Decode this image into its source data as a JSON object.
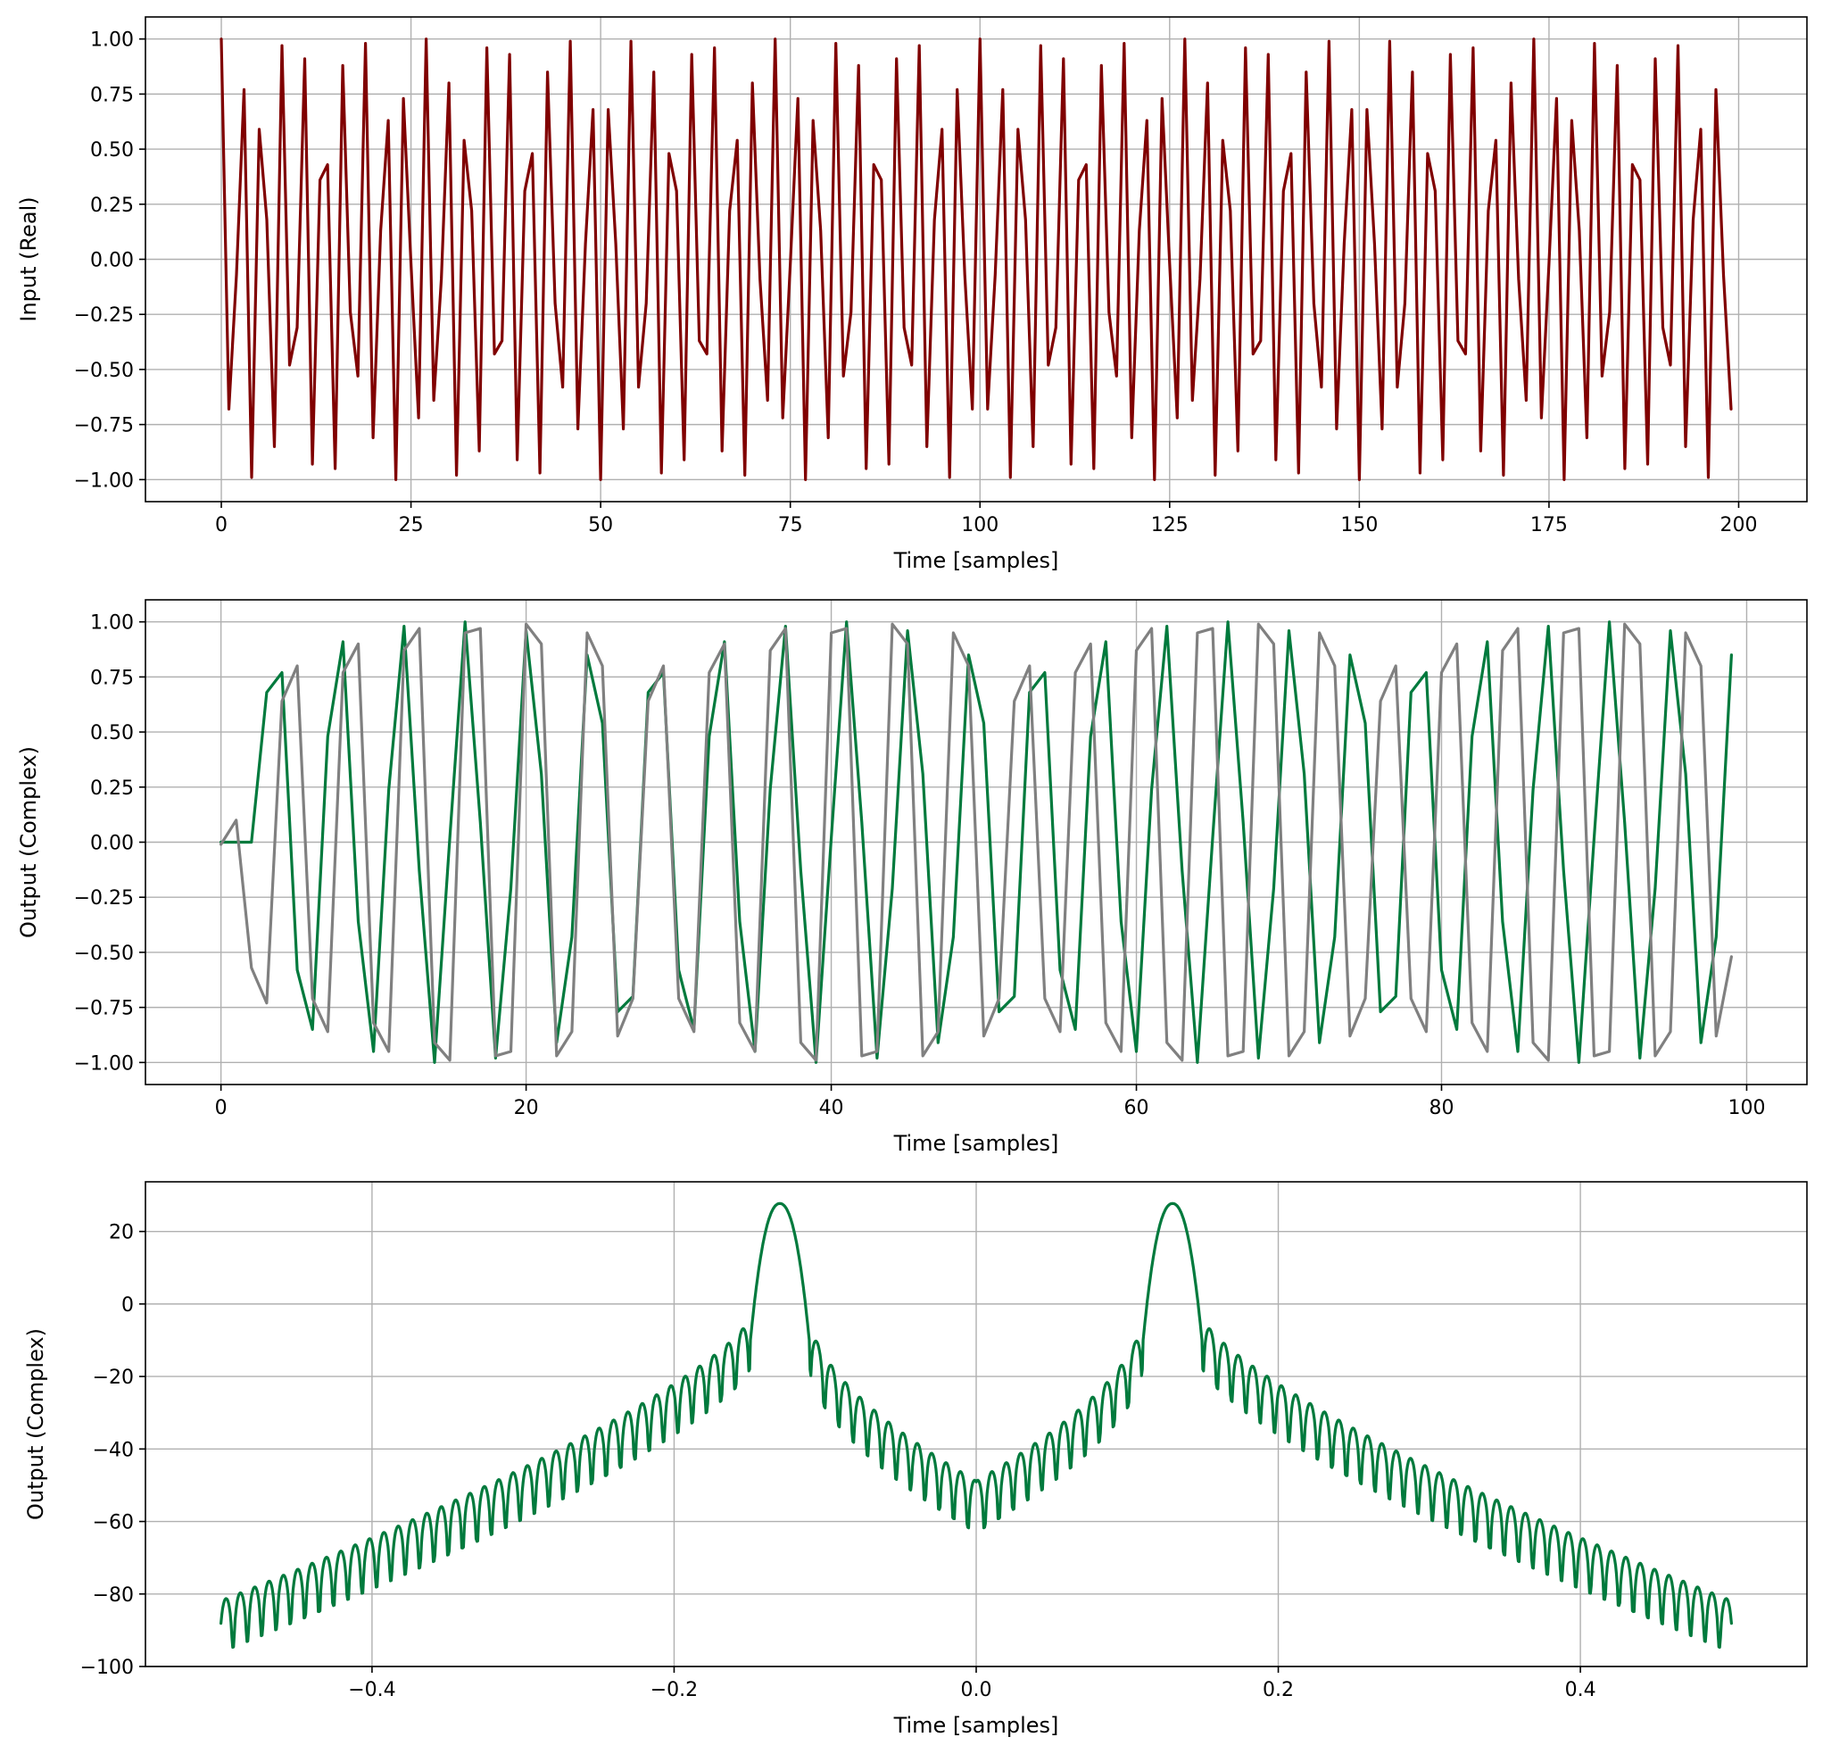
{
  "chart_data": [
    {
      "type": "line",
      "ylabel": "Input (Real)",
      "xlabel": "Time [samples]",
      "xlim": [
        -10,
        209
      ],
      "ylim": [
        -1.1,
        1.1
      ],
      "xticks": [
        0,
        25,
        50,
        75,
        100,
        125,
        150,
        175,
        200
      ],
      "xtick_labels": [
        "0",
        "25",
        "50",
        "75",
        "100",
        "125",
        "150",
        "175",
        "200"
      ],
      "yticks": [
        1.0,
        0.75,
        0.5,
        0.25,
        0.0,
        -0.25,
        -0.5,
        -0.75,
        -1.0
      ],
      "ytick_labels": [
        "1.00",
        "0.75",
        "0.50",
        "0.25",
        "0.00",
        "−0.25",
        "−0.50",
        "−0.75",
        "−1.00"
      ],
      "grid": true,
      "series": [
        {
          "color": "#800000",
          "x": [
            0,
            1,
            2,
            3,
            4,
            5,
            6,
            7,
            8,
            9,
            10,
            11,
            12,
            13,
            14,
            15,
            16,
            17,
            18,
            19,
            20,
            21,
            22,
            23,
            24,
            25,
            26,
            27,
            28,
            29,
            30,
            31,
            32,
            33,
            34,
            35,
            36,
            37,
            38,
            39,
            40,
            41,
            42,
            43,
            44,
            45,
            46,
            47,
            48,
            49,
            50,
            51,
            52,
            53,
            54,
            55,
            56,
            57,
            58,
            59,
            60,
            61,
            62,
            63,
            64,
            65,
            66,
            67,
            68,
            69,
            70,
            71,
            72,
            73,
            74,
            75,
            76,
            77,
            78,
            79,
            80,
            81,
            82,
            83,
            84,
            85,
            86,
            87,
            88,
            89,
            90,
            91,
            92,
            93,
            94,
            95,
            96,
            97,
            98,
            99,
            100,
            101,
            102,
            103,
            104,
            105,
            106,
            107,
            108,
            109,
            110,
            111,
            112,
            113,
            114,
            115,
            116,
            117,
            118,
            119,
            120,
            121,
            122,
            123,
            124,
            125,
            126,
            127,
            128,
            129,
            130,
            131,
            132,
            133,
            134,
            135,
            136,
            137,
            138,
            139,
            140,
            141,
            142,
            143,
            144,
            145,
            146,
            147,
            148,
            149,
            150,
            151,
            152,
            153,
            154,
            155,
            156,
            157,
            158,
            159,
            160,
            161,
            162,
            163,
            164,
            165,
            166,
            167,
            168,
            169,
            170,
            171,
            172,
            173,
            174,
            175,
            176,
            177,
            178,
            179,
            180,
            181,
            182,
            183,
            184,
            185,
            186,
            187,
            188,
            189,
            190,
            191,
            192,
            193,
            194,
            195,
            196,
            197,
            198,
            199
          ],
          "values": [
            1.0,
            -0.68,
            -0.07,
            0.77,
            -0.99,
            0.59,
            0.18,
            -0.85,
            0.97,
            -0.48,
            -0.31,
            0.91,
            -0.93,
            0.36,
            0.43,
            -0.95,
            0.88,
            -0.24,
            -0.53,
            0.98,
            -0.81,
            0.13,
            0.63,
            -1.0,
            0.73,
            -0.02,
            -0.72,
            1.0,
            -0.64,
            -0.09,
            0.8,
            -0.98,
            0.54,
            0.22,
            -0.87,
            0.96,
            -0.43,
            -0.37,
            0.93,
            -0.91,
            0.31,
            0.48,
            -0.97,
            0.85,
            -0.2,
            -0.58,
            0.99,
            -0.77,
            0.07,
            0.68,
            -1.0,
            0.68,
            0.07,
            -0.77,
            0.99,
            -0.58,
            -0.2,
            0.85,
            -0.97,
            0.48,
            0.31,
            -0.91,
            0.93,
            -0.37,
            -0.43,
            0.96,
            -0.87,
            0.22,
            0.54,
            -0.98,
            0.8,
            -0.09,
            -0.64,
            1.0,
            -0.72,
            -0.02,
            0.73,
            -1.0,
            0.63,
            0.13,
            -0.81,
            0.98,
            -0.53,
            -0.24,
            0.88,
            -0.95,
            0.43,
            0.36,
            -0.93,
            0.91,
            -0.31,
            -0.48,
            0.97,
            -0.85,
            0.18,
            0.59,
            -0.99,
            0.77,
            -0.07,
            -0.68,
            1.0,
            -0.68,
            -0.07,
            0.77,
            -0.99,
            0.59,
            0.18,
            -0.85,
            0.97,
            -0.48,
            -0.31,
            0.91,
            -0.93,
            0.36,
            0.43,
            -0.95,
            0.88,
            -0.24,
            -0.53,
            0.98,
            -0.81,
            0.13,
            0.63,
            -1.0,
            0.73,
            -0.02,
            -0.72,
            1.0,
            -0.64,
            -0.09,
            0.8,
            -0.98,
            0.54,
            0.22,
            -0.87,
            0.96,
            -0.43,
            -0.37,
            0.93,
            -0.91,
            0.31,
            0.48,
            -0.97,
            0.85,
            -0.2,
            -0.58,
            0.99,
            -0.77,
            0.07,
            0.68,
            -1.0,
            0.68,
            0.07,
            -0.77,
            0.99,
            -0.58,
            -0.2,
            0.85,
            -0.97,
            0.48,
            0.31,
            -0.91,
            0.93,
            -0.37,
            -0.43,
            0.96,
            -0.87,
            0.22,
            0.54,
            -0.98,
            0.8,
            -0.09,
            -0.64,
            1.0,
            -0.72,
            -0.02,
            0.73,
            -1.0,
            0.63,
            0.13,
            -0.81,
            0.98,
            -0.53,
            -0.24,
            0.88,
            -0.95,
            0.43,
            0.36,
            -0.93,
            0.91,
            -0.31,
            -0.48,
            0.97,
            -0.85,
            0.18,
            0.59,
            -0.99,
            0.77,
            -0.07,
            -0.68
          ]
        }
      ]
    },
    {
      "type": "line",
      "ylabel": "Output (Complex)",
      "xlabel": "Time [samples]",
      "xlim": [
        -4.95,
        103.95
      ],
      "ylim": [
        -1.1,
        1.1
      ],
      "xticks": [
        0,
        20,
        40,
        60,
        80,
        100
      ],
      "xtick_labels": [
        "0",
        "20",
        "40",
        "60",
        "80",
        "100"
      ],
      "yticks": [
        1.0,
        0.75,
        0.5,
        0.25,
        0.0,
        -0.25,
        -0.5,
        -0.75,
        -1.0
      ],
      "ytick_labels": [
        "1.00",
        "0.75",
        "0.50",
        "0.25",
        "0.00",
        "−0.25",
        "−0.50",
        "−0.75",
        "−1.00"
      ],
      "grid": true,
      "series": [
        {
          "color": "#007a3d",
          "x": [
            0,
            1,
            2,
            3,
            4,
            5,
            6,
            7,
            8,
            9,
            10,
            11,
            12,
            13,
            14,
            15,
            16,
            17,
            18,
            19,
            20,
            21,
            22,
            23,
            24,
            25,
            26,
            27,
            28,
            29,
            30,
            31,
            32,
            33,
            34,
            35,
            36,
            37,
            38,
            39,
            40,
            41,
            42,
            43,
            44,
            45,
            46,
            47,
            48,
            49,
            50,
            51,
            52,
            53,
            54,
            55,
            56,
            57,
            58,
            59,
            60,
            61,
            62,
            63,
            64,
            65,
            66,
            67,
            68,
            69,
            70,
            71,
            72,
            73,
            74,
            75,
            76,
            77,
            78,
            79,
            80,
            81,
            82,
            83,
            84,
            85,
            86,
            87,
            88,
            89,
            90,
            91,
            92,
            93,
            94,
            95,
            96,
            97,
            98,
            99
          ],
          "values": [
            0.0,
            0.0,
            0.0,
            0.68,
            0.77,
            -0.58,
            -0.85,
            0.48,
            0.91,
            -0.36,
            -0.95,
            0.24,
            0.98,
            -0.13,
            -1.0,
            0.02,
            1.0,
            0.09,
            -0.98,
            -0.21,
            0.96,
            0.31,
            -0.91,
            -0.43,
            0.85,
            0.54,
            -0.77,
            -0.7,
            0.68,
            0.77,
            -0.58,
            -0.85,
            0.48,
            0.91,
            -0.36,
            -0.95,
            0.24,
            0.98,
            -0.13,
            -1.0,
            0.02,
            1.0,
            0.09,
            -0.98,
            -0.21,
            0.96,
            0.31,
            -0.91,
            -0.43,
            0.85,
            0.54,
            -0.77,
            -0.7,
            0.68,
            0.77,
            -0.58,
            -0.85,
            0.48,
            0.91,
            -0.36,
            -0.95,
            0.24,
            0.98,
            -0.13,
            -1.0,
            0.02,
            1.0,
            0.09,
            -0.98,
            -0.21,
            0.96,
            0.31,
            -0.91,
            -0.43,
            0.85,
            0.54,
            -0.77,
            -0.7,
            0.68,
            0.77,
            -0.58,
            -0.85,
            0.48,
            0.91,
            -0.36,
            -0.95,
            0.24,
            0.98,
            -0.13,
            -1.0,
            0.02,
            1.0,
            0.09,
            -0.98,
            -0.21,
            0.96,
            0.31,
            -0.91,
            -0.43,
            0.85
          ]
        },
        {
          "color": "#808080",
          "x": [
            0,
            1,
            2,
            3,
            4,
            5,
            6,
            7,
            8,
            9,
            10,
            11,
            12,
            13,
            14,
            15,
            16,
            17,
            18,
            19,
            20,
            21,
            22,
            23,
            24,
            25,
            26,
            27,
            28,
            29,
            30,
            31,
            32,
            33,
            34,
            35,
            36,
            37,
            38,
            39,
            40,
            41,
            42,
            43,
            44,
            45,
            46,
            47,
            48,
            49,
            50,
            51,
            52,
            53,
            54,
            55,
            56,
            57,
            58,
            59,
            60,
            61,
            62,
            63,
            64,
            65,
            66,
            67,
            68,
            69,
            70,
            71,
            72,
            73,
            74,
            75,
            76,
            77,
            78,
            79,
            80,
            81,
            82,
            83,
            84,
            85,
            86,
            87,
            88,
            89,
            90,
            91,
            92,
            93,
            94,
            95,
            96,
            97,
            98,
            99
          ],
          "values": [
            -0.01,
            0.1,
            -0.57,
            -0.73,
            0.64,
            0.8,
            -0.71,
            -0.86,
            0.77,
            0.9,
            -0.82,
            -0.95,
            0.87,
            0.97,
            -0.91,
            -0.99,
            0.95,
            0.97,
            -0.97,
            -0.95,
            0.99,
            0.9,
            -0.97,
            -0.86,
            0.95,
            0.8,
            -0.88,
            -0.71,
            0.64,
            0.8,
            -0.71,
            -0.86,
            0.77,
            0.9,
            -0.82,
            -0.95,
            0.87,
            0.97,
            -0.91,
            -0.99,
            0.95,
            0.97,
            -0.97,
            -0.95,
            0.99,
            0.9,
            -0.97,
            -0.86,
            0.95,
            0.8,
            -0.88,
            -0.71,
            0.64,
            0.8,
            -0.71,
            -0.86,
            0.77,
            0.9,
            -0.82,
            -0.95,
            0.87,
            0.97,
            -0.91,
            -0.99,
            0.95,
            0.97,
            -0.97,
            -0.95,
            0.99,
            0.9,
            -0.97,
            -0.86,
            0.95,
            0.8,
            -0.88,
            -0.71,
            0.64,
            0.8,
            -0.71,
            -0.86,
            0.77,
            0.9,
            -0.82,
            -0.95,
            0.87,
            0.97,
            -0.91,
            -0.99,
            0.95,
            0.97,
            -0.97,
            -0.95,
            0.99,
            0.9,
            -0.97,
            -0.86,
            0.95,
            0.8,
            -0.88,
            -0.52
          ]
        }
      ]
    },
    {
      "type": "line",
      "ylabel": "Output (Complex)",
      "xlabel": "Time [samples]",
      "xlim": [
        -0.55,
        0.55
      ],
      "ylim": [
        -100,
        33.7
      ],
      "xticks": [
        -0.4,
        -0.2,
        0.0,
        0.2,
        0.4
      ],
      "xtick_labels": [
        "−0.4",
        "−0.2",
        "0.0",
        "0.2",
        "0.4"
      ],
      "yticks": [
        20,
        0,
        -20,
        -40,
        -60,
        -80,
        -100
      ],
      "ytick_labels": [
        "20",
        "0",
        "−20",
        "−40",
        "−60",
        "−80",
        "−100"
      ],
      "grid": true,
      "series": [
        {
          "color": "#007a3d",
          "peak_db": 27.7,
          "peak_freq": [
            -0.13,
            0.13
          ],
          "mainlobe_half_width": 0.02,
          "floor_db_at_edges": -80,
          "floor_db_at_center": -51,
          "notch_db_range": [
            -95,
            -3
          ],
          "x_range": [
            -0.5,
            0.5
          ]
        }
      ]
    }
  ]
}
